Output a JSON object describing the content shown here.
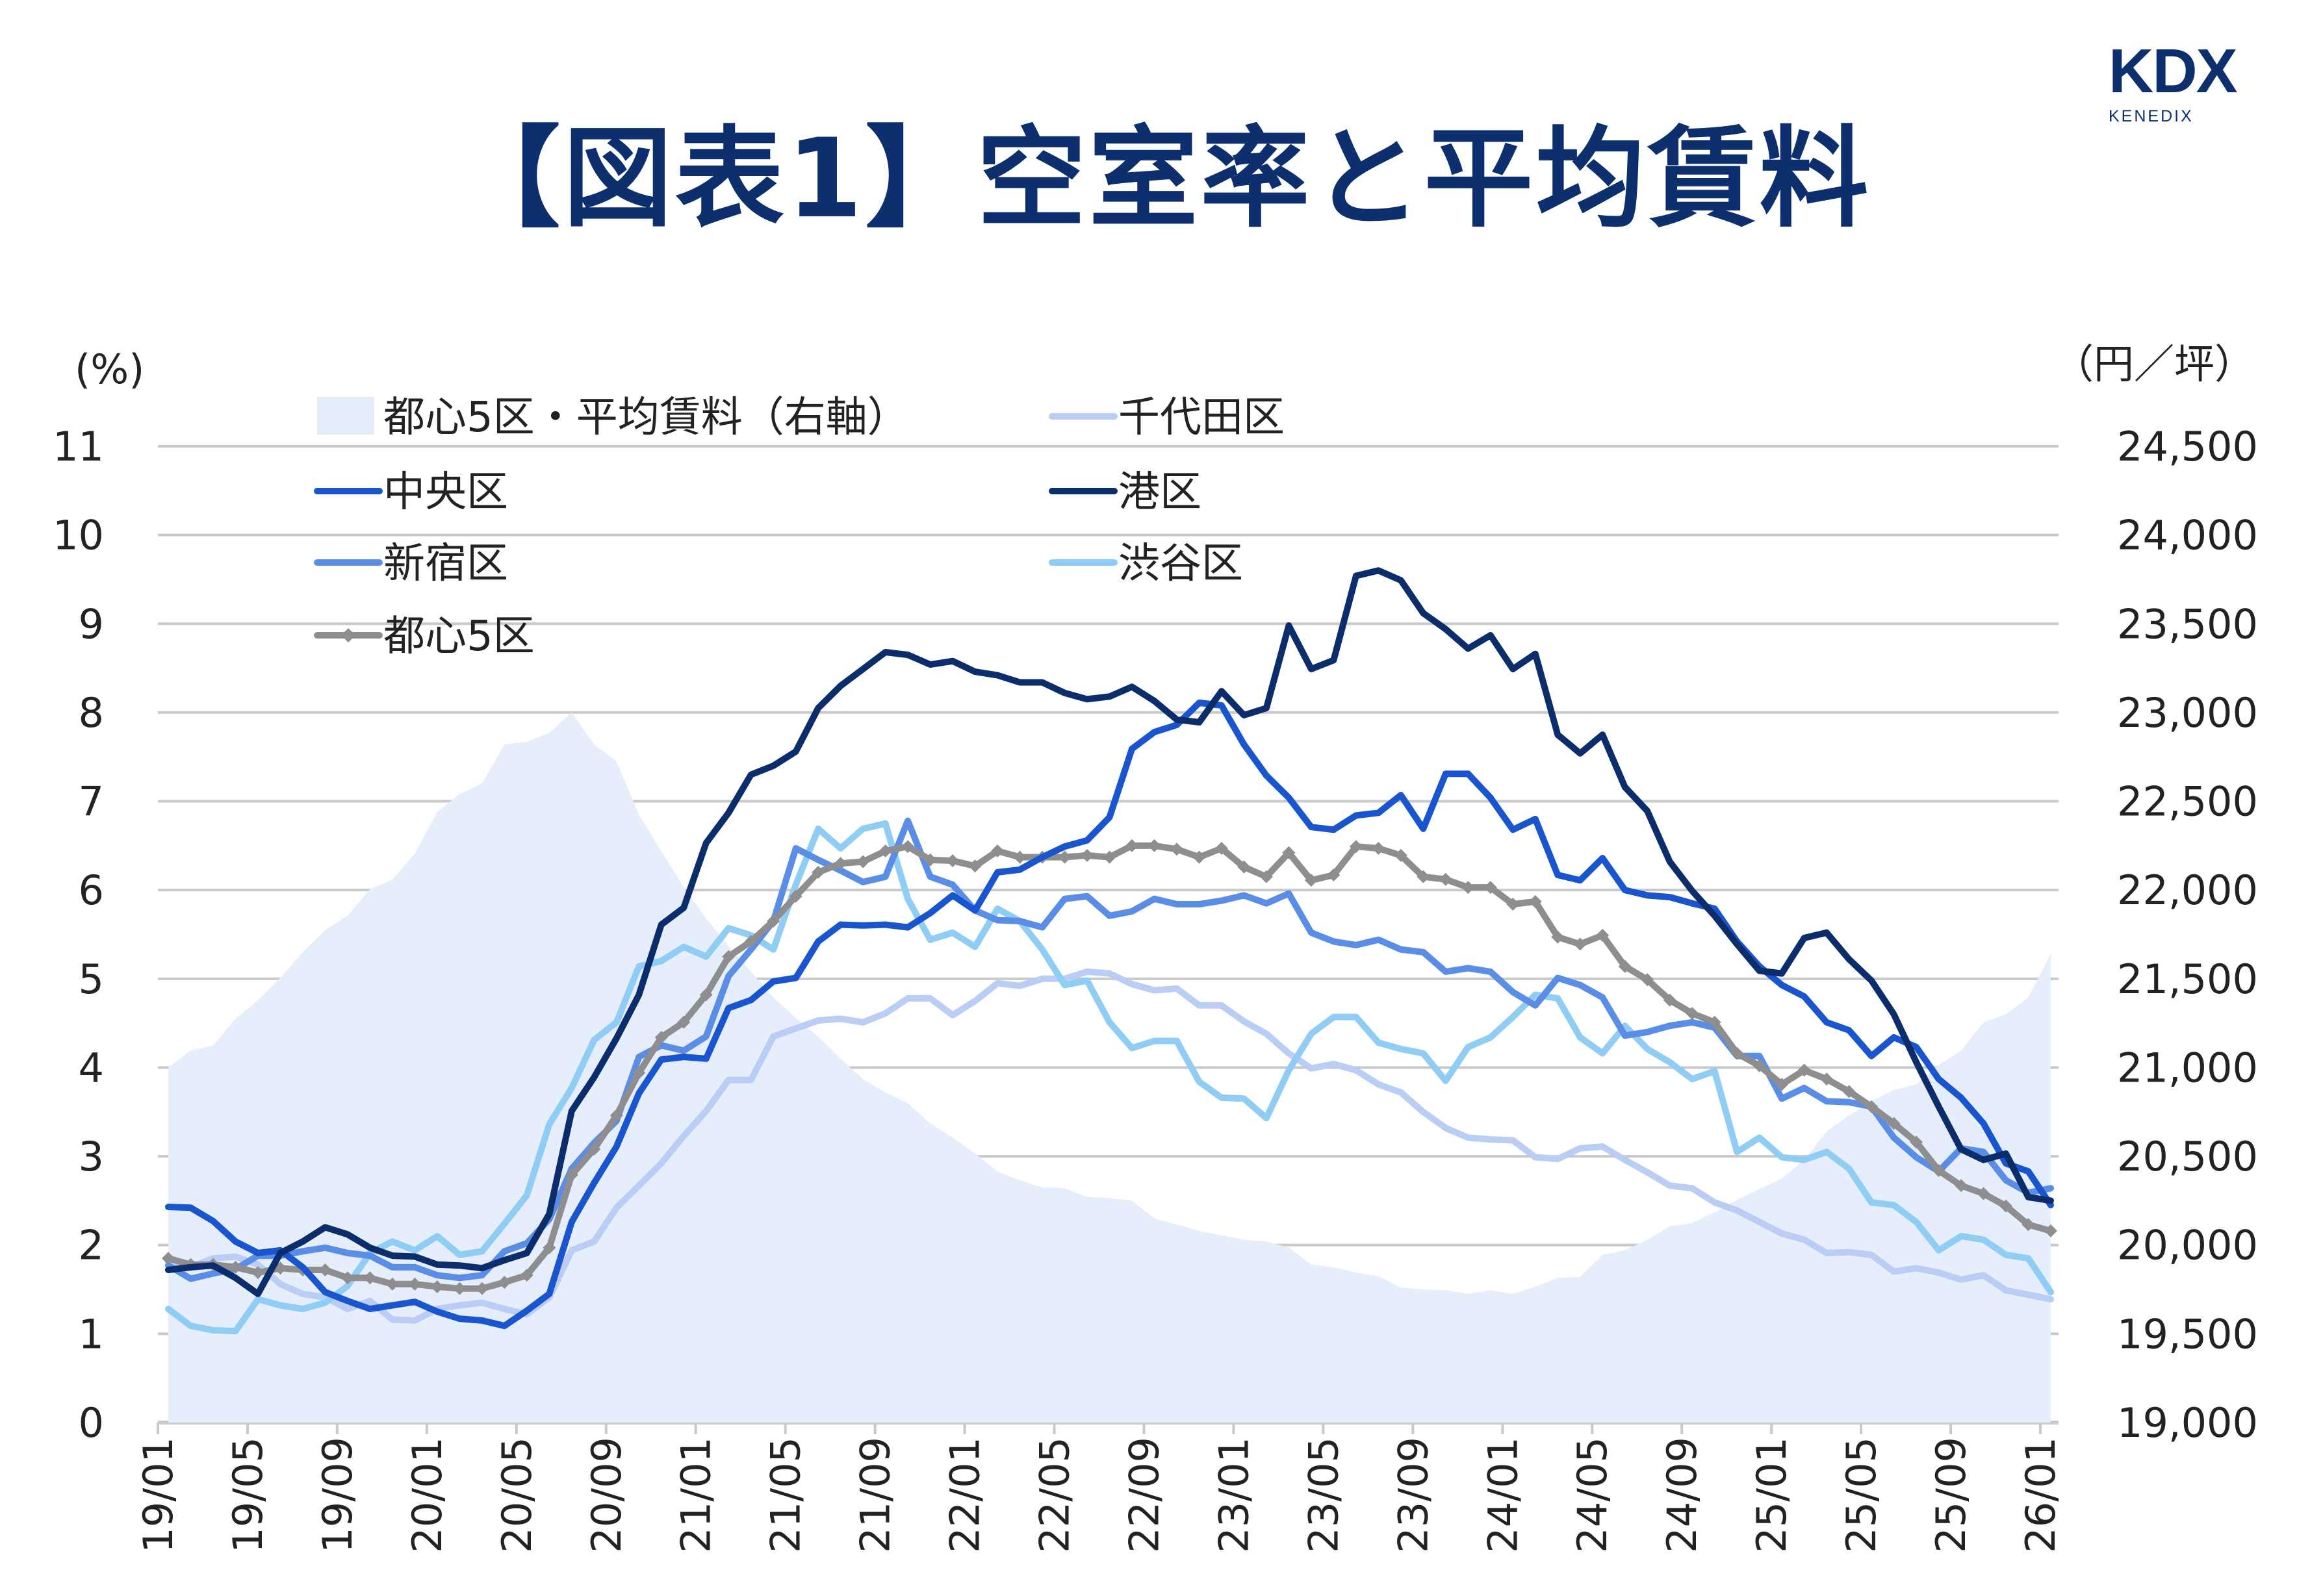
{
  "title": "【図表1】空室率と平均賃料",
  "logo": {
    "mark": "KDX",
    "sub": "KENEDIX"
  },
  "colors": {
    "title": "#0d2f6e",
    "grid": "#c9c9c9",
    "rent_area": "#e6eefb",
    "chiyoda": "#b9cdf5",
    "chuo": "#1a55d0",
    "minato": "#0b2d6b",
    "shinjuku": "#5a8de6",
    "shibuya": "#8fcdf5",
    "tokyo5": "#8e8e90"
  },
  "chart_data": {
    "type": "line",
    "title": "【図表1】空室率と平均賃料",
    "y_left": {
      "unit_label": "(%)",
      "range": [
        0,
        11
      ],
      "ticks": [
        "0",
        "1",
        "2",
        "3",
        "4",
        "5",
        "6",
        "7",
        "8",
        "9",
        "10",
        "11"
      ]
    },
    "y_right": {
      "unit_label": "（円／坪）",
      "range": [
        19000,
        24500
      ],
      "ticks": [
        "19,000",
        "19,500",
        "20,000",
        "20,500",
        "21,000",
        "21,500",
        "22,000",
        "22,500",
        "23,000",
        "23,500",
        "24,000",
        "24,500"
      ]
    },
    "x": {
      "start": "19/01",
      "end": "26/01",
      "frequency": "monthly",
      "tick_labels": [
        "19/01",
        "19/05",
        "19/09",
        "20/01",
        "20/05",
        "20/09",
        "21/01",
        "21/05",
        "21/09",
        "22/01",
        "22/05",
        "22/09",
        "23/01",
        "23/05",
        "23/09",
        "24/01",
        "24/05",
        "24/09",
        "25/01",
        "25/05",
        "25/09",
        "26/01"
      ]
    },
    "grid": true,
    "legend_placement": "top-left",
    "area": {
      "name": "都心5区・平均賃料（右軸）",
      "axis": "right",
      "values": [
        21000,
        21095,
        21125,
        21275,
        21380,
        21505,
        21650,
        21775,
        21855,
        22005,
        22060,
        22205,
        22440,
        22540,
        22600,
        22820,
        22835,
        22885,
        23000,
        22820,
        22725,
        22425,
        22220,
        22015,
        21840,
        21685,
        21540,
        21395,
        21280,
        21175,
        21050,
        20935,
        20860,
        20800,
        20685,
        20605,
        20515,
        20415,
        20365,
        20325,
        20320,
        20270,
        20265,
        20250,
        20150,
        20115,
        20080,
        20055,
        20030,
        20020,
        19985,
        19890,
        19875,
        19845,
        19825,
        19760,
        19750,
        19745,
        19725,
        19745,
        19725,
        19765,
        19815,
        19820,
        19945,
        19970,
        20030,
        20105,
        20125,
        20185,
        20255,
        20315,
        20375,
        20480,
        20640,
        20730,
        20810,
        20875,
        20905,
        21015,
        21095,
        21255,
        21300,
        21395,
        21640
      ]
    },
    "series": [
      {
        "key": "chiyoda",
        "name": "千代田区",
        "axis": "left",
        "values": [
          1.81,
          1.75,
          1.85,
          1.87,
          1.78,
          1.56,
          1.45,
          1.41,
          1.28,
          1.37,
          1.16,
          1.15,
          1.28,
          1.32,
          1.35,
          1.28,
          1.22,
          1.41,
          1.94,
          2.04,
          2.42,
          2.67,
          2.92,
          3.23,
          3.51,
          3.86,
          3.86,
          4.35,
          4.44,
          4.53,
          4.55,
          4.51,
          4.61,
          4.78,
          4.78,
          4.59,
          4.75,
          4.95,
          4.92,
          5.0,
          5.0,
          5.08,
          5.06,
          4.94,
          4.87,
          4.89,
          4.7,
          4.7,
          4.52,
          4.38,
          4.16,
          3.99,
          4.04,
          3.97,
          3.81,
          3.72,
          3.5,
          3.32,
          3.21,
          3.19,
          3.18,
          2.99,
          2.97,
          3.09,
          3.11,
          2.96,
          2.82,
          2.67,
          2.64,
          2.48,
          2.39,
          2.26,
          2.13,
          2.06,
          1.91,
          1.92,
          1.89,
          1.7,
          1.74,
          1.69,
          1.61,
          1.66,
          1.49,
          1.44,
          1.39
        ]
      },
      {
        "key": "shibuya",
        "name": "渋谷区",
        "axis": "left",
        "values": [
          1.28,
          1.09,
          1.04,
          1.03,
          1.39,
          1.32,
          1.28,
          1.35,
          1.54,
          1.91,
          2.04,
          1.94,
          2.1,
          1.89,
          1.93,
          2.24,
          2.56,
          3.36,
          3.77,
          4.31,
          4.51,
          5.14,
          5.2,
          5.36,
          5.25,
          5.57,
          5.49,
          5.33,
          6.06,
          6.69,
          6.47,
          6.69,
          6.75,
          5.9,
          5.44,
          5.52,
          5.36,
          5.79,
          5.65,
          5.33,
          4.93,
          4.98,
          4.51,
          4.22,
          4.3,
          4.3,
          3.84,
          3.66,
          3.65,
          3.43,
          3.97,
          4.38,
          4.57,
          4.57,
          4.28,
          4.21,
          4.16,
          3.85,
          4.23,
          4.34,
          4.57,
          4.82,
          4.78,
          4.34,
          4.16,
          4.47,
          4.21,
          4.06,
          3.87,
          3.96,
          3.05,
          3.21,
          2.99,
          2.96,
          3.05,
          2.86,
          2.48,
          2.45,
          2.26,
          1.94,
          2.1,
          2.06,
          1.89,
          1.85,
          1.47
        ]
      },
      {
        "key": "shinjuku",
        "name": "新宿区",
        "axis": "left",
        "values": [
          1.77,
          1.62,
          1.68,
          1.73,
          1.88,
          1.88,
          1.93,
          1.97,
          1.91,
          1.88,
          1.75,
          1.75,
          1.66,
          1.63,
          1.66,
          1.93,
          2.02,
          2.29,
          2.86,
          3.15,
          3.4,
          4.12,
          4.25,
          4.19,
          4.35,
          5.03,
          5.33,
          5.65,
          6.47,
          6.34,
          6.22,
          6.09,
          6.15,
          6.78,
          6.15,
          6.06,
          5.77,
          5.66,
          5.65,
          5.58,
          5.9,
          5.93,
          5.71,
          5.76,
          5.9,
          5.84,
          5.84,
          5.88,
          5.94,
          5.85,
          5.96,
          5.52,
          5.42,
          5.38,
          5.44,
          5.33,
          5.3,
          5.08,
          5.12,
          5.08,
          4.85,
          4.7,
          5.01,
          4.93,
          4.79,
          4.36,
          4.4,
          4.47,
          4.51,
          4.45,
          4.13,
          4.13,
          3.65,
          3.77,
          3.62,
          3.61,
          3.56,
          3.21,
          2.99,
          2.83,
          3.09,
          3.05,
          2.73,
          2.59,
          2.64
        ]
      },
      {
        "key": "tokyo5",
        "name": "都心5区",
        "axis": "left",
        "markers": "diamond",
        "values": [
          1.85,
          1.78,
          1.78,
          1.75,
          1.69,
          1.74,
          1.72,
          1.72,
          1.63,
          1.63,
          1.56,
          1.56,
          1.53,
          1.51,
          1.51,
          1.58,
          1.66,
          1.97,
          2.79,
          3.08,
          3.46,
          3.94,
          4.34,
          4.51,
          4.82,
          5.25,
          5.42,
          5.65,
          5.93,
          6.2,
          6.3,
          6.32,
          6.44,
          6.49,
          6.34,
          6.33,
          6.27,
          6.44,
          6.37,
          6.37,
          6.37,
          6.39,
          6.37,
          6.5,
          6.5,
          6.46,
          6.37,
          6.47,
          6.26,
          6.15,
          6.42,
          6.11,
          6.17,
          6.49,
          6.47,
          6.39,
          6.15,
          6.12,
          6.03,
          6.03,
          5.84,
          5.87,
          5.47,
          5.39,
          5.49,
          5.14,
          4.99,
          4.76,
          4.61,
          4.51,
          4.16,
          4.02,
          3.81,
          3.97,
          3.87,
          3.73,
          3.56,
          3.37,
          3.16,
          2.84,
          2.67,
          2.58,
          2.44,
          2.23,
          2.16
        ]
      },
      {
        "key": "chuo",
        "name": "中央区",
        "axis": "left",
        "values": [
          2.43,
          2.42,
          2.27,
          2.04,
          1.91,
          1.94,
          1.75,
          1.47,
          1.37,
          1.28,
          1.32,
          1.36,
          1.25,
          1.17,
          1.15,
          1.09,
          1.26,
          1.45,
          2.26,
          2.7,
          3.11,
          3.71,
          4.09,
          4.12,
          4.1,
          4.67,
          4.76,
          4.97,
          5.01,
          5.42,
          5.61,
          5.6,
          5.61,
          5.58,
          5.74,
          5.94,
          5.77,
          6.2,
          6.23,
          6.37,
          6.49,
          6.56,
          6.82,
          7.59,
          7.78,
          7.86,
          8.11,
          8.08,
          7.64,
          7.29,
          7.04,
          6.71,
          6.68,
          6.84,
          6.87,
          7.07,
          6.69,
          7.31,
          7.31,
          7.04,
          6.68,
          6.8,
          6.17,
          6.11,
          6.36,
          6.0,
          5.94,
          5.92,
          5.85,
          5.79,
          5.42,
          5.14,
          4.93,
          4.8,
          4.51,
          4.42,
          4.13,
          4.34,
          4.23,
          3.87,
          3.66,
          3.37,
          2.92,
          2.83,
          2.45
        ]
      },
      {
        "key": "minato",
        "name": "港区",
        "axis": "left",
        "values": [
          1.72,
          1.75,
          1.77,
          1.63,
          1.45,
          1.91,
          2.04,
          2.2,
          2.12,
          1.97,
          1.88,
          1.87,
          1.78,
          1.77,
          1.74,
          1.83,
          1.91,
          2.35,
          3.51,
          3.89,
          4.33,
          4.82,
          5.61,
          5.8,
          6.53,
          6.87,
          7.3,
          7.4,
          7.56,
          8.05,
          8.3,
          8.49,
          8.68,
          8.65,
          8.54,
          8.58,
          8.46,
          8.42,
          8.34,
          8.34,
          8.22,
          8.15,
          8.18,
          8.29,
          8.13,
          7.92,
          7.89,
          8.24,
          7.97,
          8.05,
          8.98,
          8.49,
          8.59,
          9.54,
          9.6,
          9.49,
          9.12,
          8.94,
          8.72,
          8.87,
          8.49,
          8.66,
          7.75,
          7.54,
          7.75,
          7.16,
          6.89,
          6.32,
          5.99,
          5.71,
          5.39,
          5.09,
          5.06,
          5.46,
          5.52,
          5.22,
          4.98,
          4.6,
          4.06,
          3.56,
          3.08,
          2.96,
          3.03,
          2.54,
          2.5
        ]
      }
    ],
    "legend": [
      {
        "key": "rent",
        "label": "都心5区・平均賃料（右軸）"
      },
      {
        "key": "chiyoda",
        "label": "千代田区"
      },
      {
        "key": "chuo",
        "label": "中央区"
      },
      {
        "key": "minato",
        "label": "港区"
      },
      {
        "key": "shinjuku",
        "label": "新宿区"
      },
      {
        "key": "shibuya",
        "label": "渋谷区"
      },
      {
        "key": "tokyo5",
        "label": "都心5区"
      }
    ]
  }
}
